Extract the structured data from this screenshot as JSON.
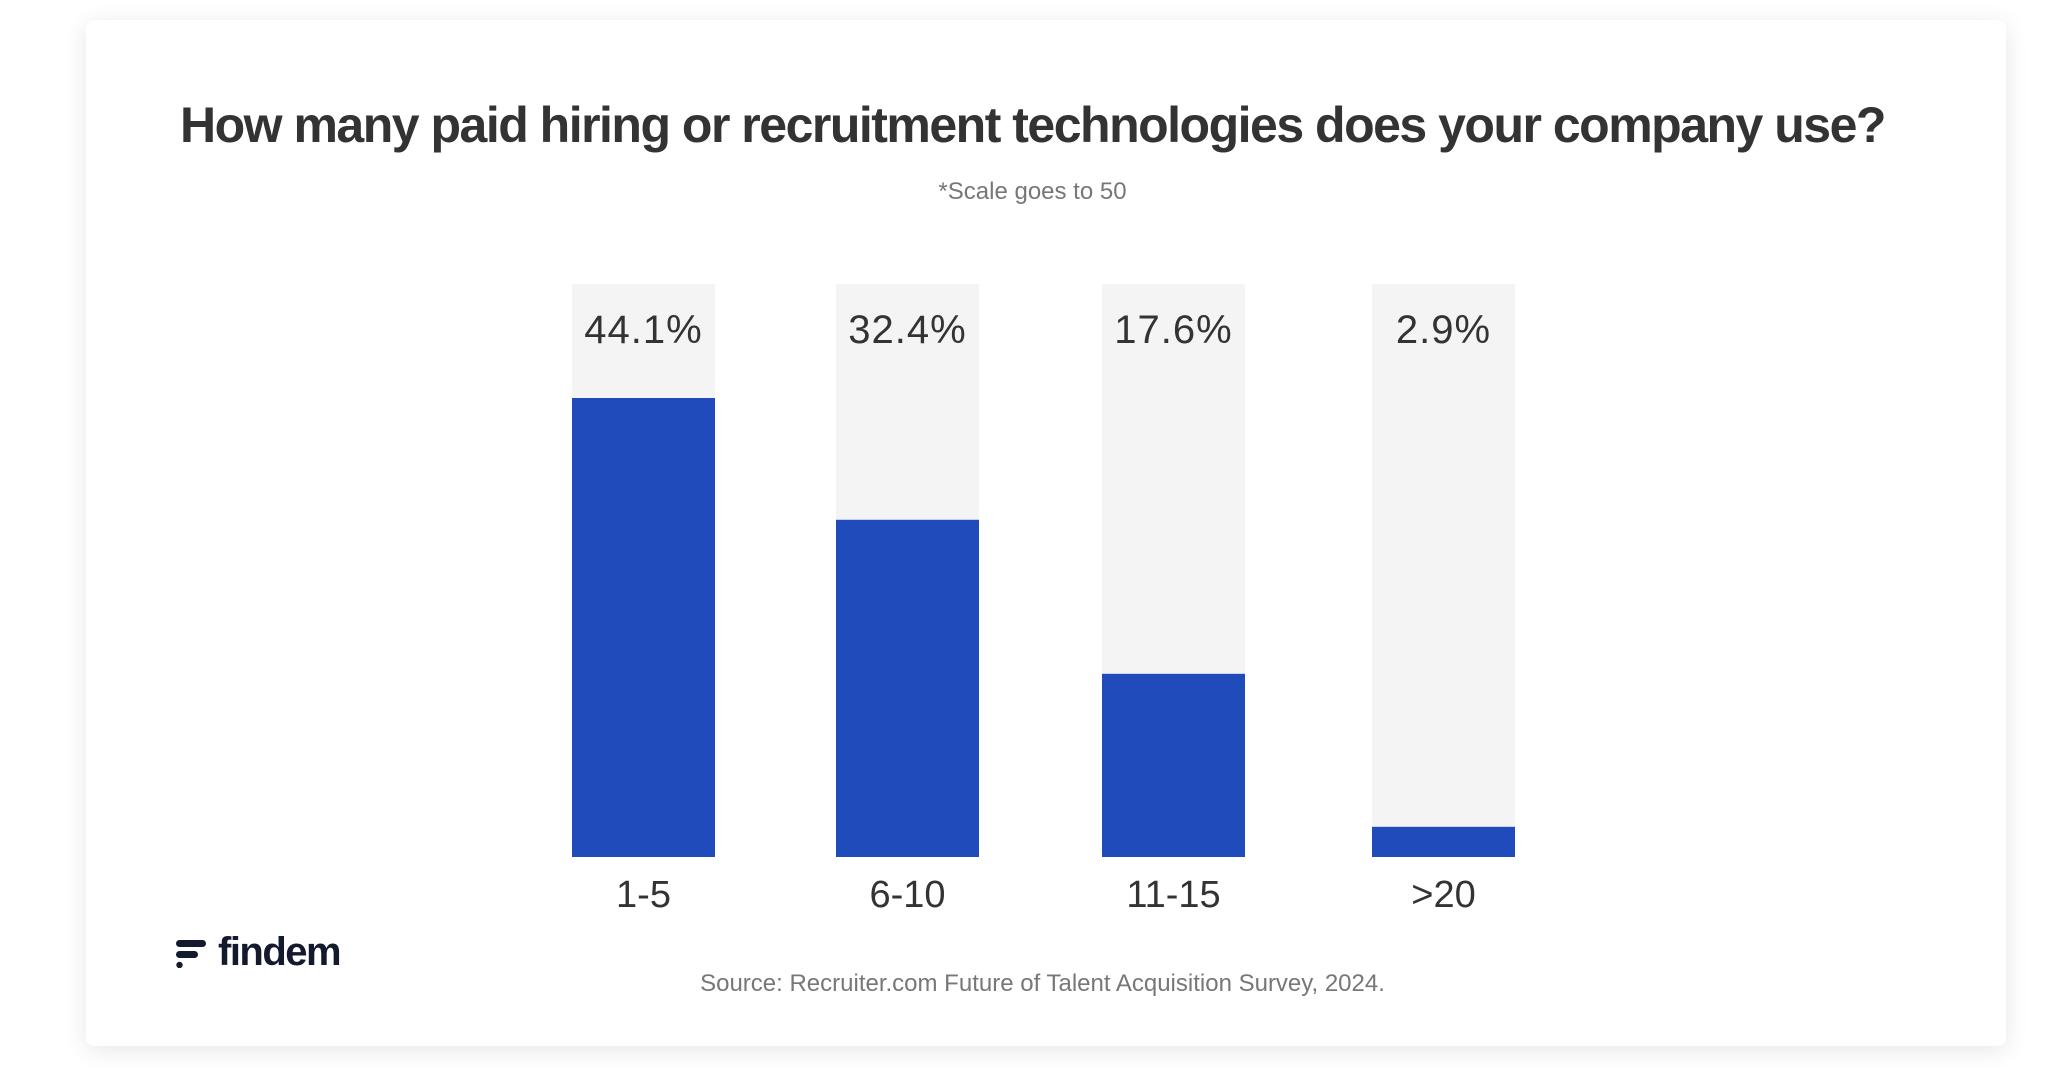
{
  "chart_data": {
    "type": "bar",
    "title": "How many paid hiring or recruitment technologies does your company use?",
    "subtitle": "*Scale goes to 50",
    "categories": [
      "1-5",
      "6-10",
      "11-15",
      ">20"
    ],
    "values": [
      44.1,
      32.4,
      17.6,
      2.9
    ],
    "value_labels": [
      "44.1%",
      "32.4%",
      "17.6%",
      "2.9%"
    ],
    "ylim": [
      0,
      50
    ],
    "grid": false,
    "colors": {
      "bar": "#1f4bbb",
      "track": "#f4f4f4",
      "text": "#333333"
    }
  },
  "footer": {
    "source": "Source: Recruiter.com Future of Talent Acquisition Survey, 2024.",
    "logo": "findem"
  }
}
